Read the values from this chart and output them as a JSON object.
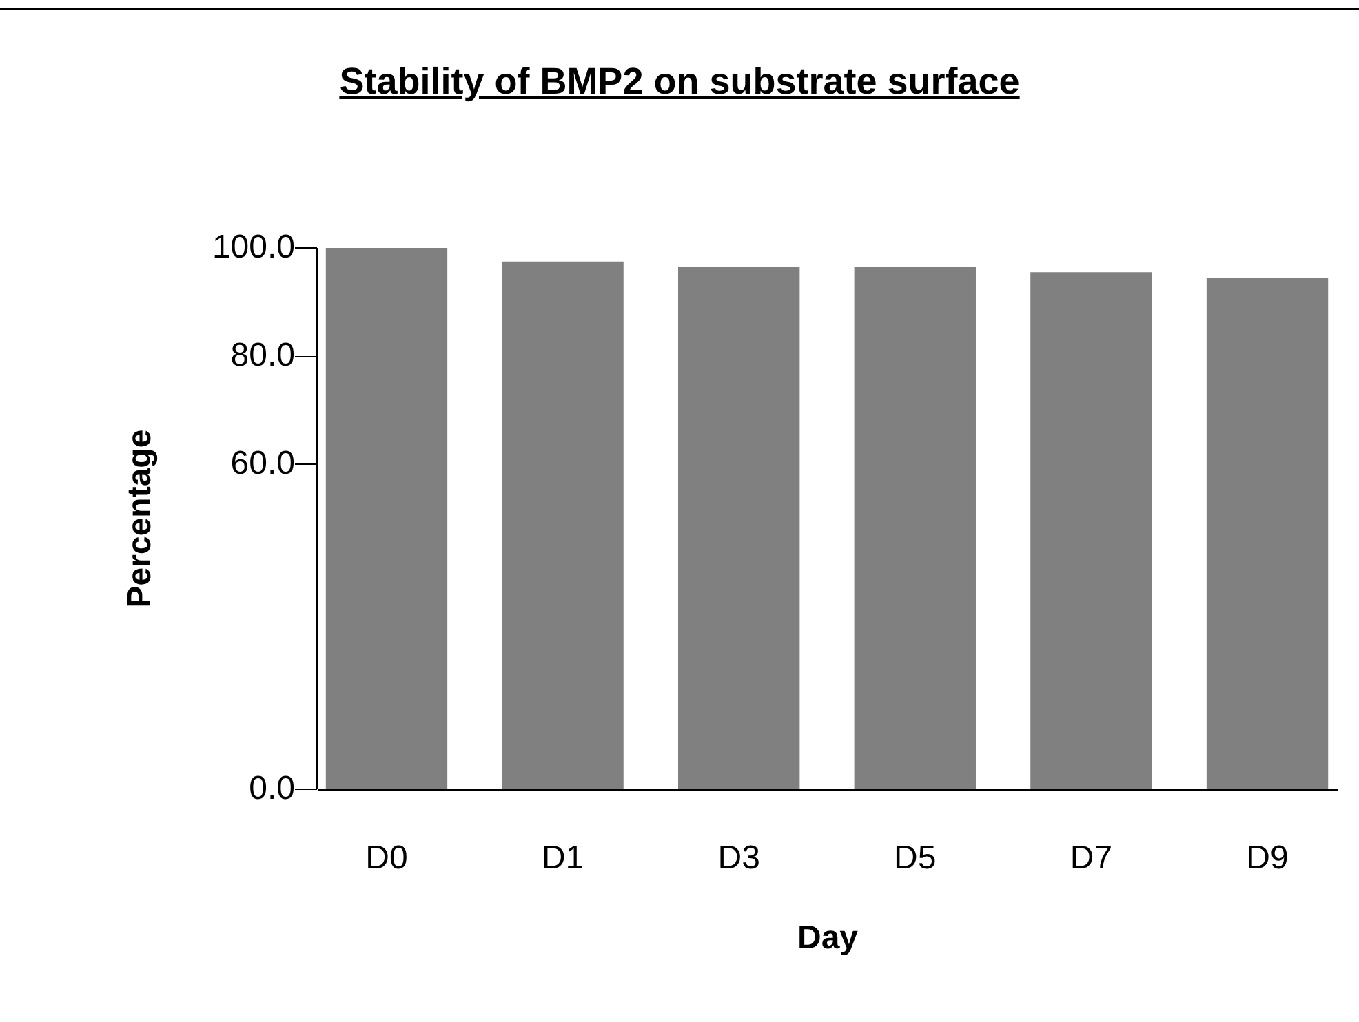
{
  "chart_data": {
    "type": "bar",
    "title": "Stability of BMP2 on substrate surface",
    "xlabel": "Day",
    "ylabel": "Percentage",
    "categories": [
      "D0",
      "D1",
      "D3",
      "D5",
      "D7",
      "D9"
    ],
    "values": [
      100,
      97.5,
      96.5,
      96.5,
      95.5,
      94.5
    ],
    "color": "#808080",
    "ylim": [
      0,
      100
    ],
    "yticks": [
      {
        "value": 0,
        "label": "0.0"
      },
      {
        "value": 60,
        "label": "60.0"
      },
      {
        "value": 80,
        "label": "80.0"
      },
      {
        "value": 100,
        "label": "100.0"
      }
    ],
    "grid": false
  }
}
